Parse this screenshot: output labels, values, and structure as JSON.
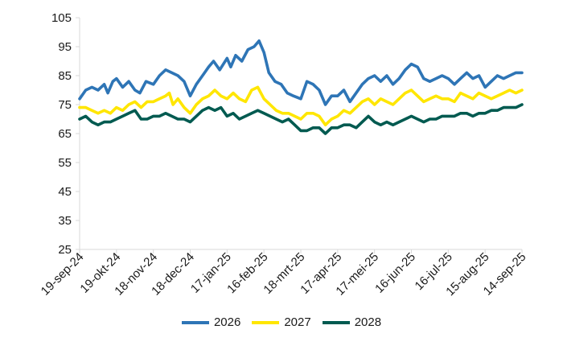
{
  "chart_data": {
    "type": "line",
    "title": "",
    "xlabel": "",
    "ylabel": "",
    "ylim": [
      25,
      105
    ],
    "yticks": [
      25,
      35,
      45,
      55,
      65,
      75,
      85,
      95,
      105
    ],
    "x_range": [
      "2024-09-19",
      "2025-09-14"
    ],
    "xticks": [
      {
        "date": "2024-09-19",
        "label": "19-sep-24"
      },
      {
        "date": "2024-10-19",
        "label": "19-okt-24"
      },
      {
        "date": "2024-11-18",
        "label": "18-nov-24"
      },
      {
        "date": "2024-12-18",
        "label": "18-dec-24"
      },
      {
        "date": "2025-01-17",
        "label": "17-jan-25"
      },
      {
        "date": "2025-02-16",
        "label": "16-feb-25"
      },
      {
        "date": "2025-03-18",
        "label": "18-mrt-25"
      },
      {
        "date": "2025-04-17",
        "label": "17-apr-25"
      },
      {
        "date": "2025-05-17",
        "label": "17-mei-25"
      },
      {
        "date": "2025-06-16",
        "label": "16-jun-25"
      },
      {
        "date": "2025-07-16",
        "label": "16-jul-25"
      },
      {
        "date": "2025-08-15",
        "label": "15-aug-25"
      },
      {
        "date": "2025-09-14",
        "label": "14-sep-25"
      }
    ],
    "grid": false,
    "legend_position": "bottom",
    "series": [
      {
        "name": "2026",
        "color": "#2e75b6",
        "points": [
          [
            "2024-09-19",
            77
          ],
          [
            "2024-09-24",
            80
          ],
          [
            "2024-09-29",
            81
          ],
          [
            "2024-10-04",
            80
          ],
          [
            "2024-10-09",
            82
          ],
          [
            "2024-10-12",
            79
          ],
          [
            "2024-10-16",
            83
          ],
          [
            "2024-10-19",
            84
          ],
          [
            "2024-10-24",
            81
          ],
          [
            "2024-10-29",
            83
          ],
          [
            "2024-11-03",
            80
          ],
          [
            "2024-11-07",
            79
          ],
          [
            "2024-11-12",
            83
          ],
          [
            "2024-11-18",
            82
          ],
          [
            "2024-11-23",
            85
          ],
          [
            "2024-11-28",
            87
          ],
          [
            "2024-12-03",
            86
          ],
          [
            "2024-12-08",
            85
          ],
          [
            "2024-12-13",
            83
          ],
          [
            "2024-12-18",
            78
          ],
          [
            "2024-12-23",
            82
          ],
          [
            "2024-12-28",
            85
          ],
          [
            "2025-01-02",
            88
          ],
          [
            "2025-01-06",
            90
          ],
          [
            "2025-01-11",
            87
          ],
          [
            "2025-01-17",
            91
          ],
          [
            "2025-01-20",
            88
          ],
          [
            "2025-01-24",
            92
          ],
          [
            "2025-01-29",
            90
          ],
          [
            "2025-02-03",
            94
          ],
          [
            "2025-02-08",
            95
          ],
          [
            "2025-02-12",
            97
          ],
          [
            "2025-02-16",
            93
          ],
          [
            "2025-02-20",
            86
          ],
          [
            "2025-02-25",
            83
          ],
          [
            "2025-03-02",
            82
          ],
          [
            "2025-03-07",
            79
          ],
          [
            "2025-03-12",
            78
          ],
          [
            "2025-03-18",
            77
          ],
          [
            "2025-03-23",
            83
          ],
          [
            "2025-03-28",
            82
          ],
          [
            "2025-04-02",
            80
          ],
          [
            "2025-04-07",
            75
          ],
          [
            "2025-04-12",
            78
          ],
          [
            "2025-04-17",
            78
          ],
          [
            "2025-04-22",
            80
          ],
          [
            "2025-04-27",
            76
          ],
          [
            "2025-05-02",
            79
          ],
          [
            "2025-05-07",
            82
          ],
          [
            "2025-05-12",
            84
          ],
          [
            "2025-05-17",
            85
          ],
          [
            "2025-05-22",
            83
          ],
          [
            "2025-05-27",
            85
          ],
          [
            "2025-06-01",
            82
          ],
          [
            "2025-06-06",
            84
          ],
          [
            "2025-06-11",
            87
          ],
          [
            "2025-06-16",
            89
          ],
          [
            "2025-06-21",
            88
          ],
          [
            "2025-06-26",
            84
          ],
          [
            "2025-07-01",
            83
          ],
          [
            "2025-07-06",
            84
          ],
          [
            "2025-07-11",
            85
          ],
          [
            "2025-07-16",
            84
          ],
          [
            "2025-07-21",
            82
          ],
          [
            "2025-07-26",
            84
          ],
          [
            "2025-07-31",
            86
          ],
          [
            "2025-08-05",
            84
          ],
          [
            "2025-08-10",
            85
          ],
          [
            "2025-08-15",
            81
          ],
          [
            "2025-08-20",
            83
          ],
          [
            "2025-08-25",
            85
          ],
          [
            "2025-08-30",
            84
          ],
          [
            "2025-09-04",
            85
          ],
          [
            "2025-09-09",
            86
          ],
          [
            "2025-09-14",
            86
          ]
        ]
      },
      {
        "name": "2027",
        "color": "#ffe600",
        "points": [
          [
            "2024-09-19",
            74
          ],
          [
            "2024-09-24",
            74
          ],
          [
            "2024-09-29",
            73
          ],
          [
            "2024-10-04",
            72
          ],
          [
            "2024-10-09",
            73
          ],
          [
            "2024-10-14",
            72
          ],
          [
            "2024-10-19",
            74
          ],
          [
            "2024-10-24",
            73
          ],
          [
            "2024-10-29",
            75
          ],
          [
            "2024-11-03",
            76
          ],
          [
            "2024-11-08",
            74
          ],
          [
            "2024-11-13",
            76
          ],
          [
            "2024-11-18",
            76
          ],
          [
            "2024-11-23",
            77
          ],
          [
            "2024-11-28",
            78
          ],
          [
            "2024-12-01",
            79
          ],
          [
            "2024-12-04",
            75
          ],
          [
            "2024-12-08",
            77
          ],
          [
            "2024-12-13",
            74
          ],
          [
            "2024-12-18",
            72
          ],
          [
            "2024-12-23",
            75
          ],
          [
            "2024-12-28",
            77
          ],
          [
            "2025-01-02",
            78
          ],
          [
            "2025-01-07",
            80
          ],
          [
            "2025-01-12",
            78
          ],
          [
            "2025-01-17",
            77
          ],
          [
            "2025-01-22",
            79
          ],
          [
            "2025-01-27",
            77
          ],
          [
            "2025-02-01",
            76
          ],
          [
            "2025-02-06",
            80
          ],
          [
            "2025-02-11",
            81
          ],
          [
            "2025-02-16",
            77
          ],
          [
            "2025-02-21",
            75
          ],
          [
            "2025-02-26",
            73
          ],
          [
            "2025-03-03",
            72
          ],
          [
            "2025-03-08",
            72
          ],
          [
            "2025-03-13",
            71
          ],
          [
            "2025-03-18",
            70
          ],
          [
            "2025-03-23",
            72
          ],
          [
            "2025-03-28",
            72
          ],
          [
            "2025-04-02",
            71
          ],
          [
            "2025-04-07",
            68
          ],
          [
            "2025-04-12",
            70
          ],
          [
            "2025-04-17",
            71
          ],
          [
            "2025-04-22",
            73
          ],
          [
            "2025-04-27",
            72
          ],
          [
            "2025-05-02",
            74
          ],
          [
            "2025-05-07",
            76
          ],
          [
            "2025-05-12",
            77
          ],
          [
            "2025-05-17",
            75
          ],
          [
            "2025-05-22",
            77
          ],
          [
            "2025-05-27",
            76
          ],
          [
            "2025-06-01",
            75
          ],
          [
            "2025-06-06",
            77
          ],
          [
            "2025-06-11",
            79
          ],
          [
            "2025-06-16",
            80
          ],
          [
            "2025-06-21",
            78
          ],
          [
            "2025-06-26",
            76
          ],
          [
            "2025-07-01",
            77
          ],
          [
            "2025-07-06",
            78
          ],
          [
            "2025-07-11",
            77
          ],
          [
            "2025-07-16",
            77
          ],
          [
            "2025-07-21",
            76
          ],
          [
            "2025-07-26",
            79
          ],
          [
            "2025-07-31",
            78
          ],
          [
            "2025-08-05",
            77
          ],
          [
            "2025-08-10",
            79
          ],
          [
            "2025-08-15",
            78
          ],
          [
            "2025-08-20",
            77
          ],
          [
            "2025-08-25",
            78
          ],
          [
            "2025-08-30",
            79
          ],
          [
            "2025-09-04",
            80
          ],
          [
            "2025-09-09",
            79
          ],
          [
            "2025-09-14",
            80
          ]
        ]
      },
      {
        "name": "2028",
        "color": "#005a50",
        "points": [
          [
            "2024-09-19",
            70
          ],
          [
            "2024-09-24",
            71
          ],
          [
            "2024-09-29",
            69
          ],
          [
            "2024-10-04",
            68
          ],
          [
            "2024-10-09",
            69
          ],
          [
            "2024-10-14",
            69
          ],
          [
            "2024-10-19",
            70
          ],
          [
            "2024-10-24",
            71
          ],
          [
            "2024-10-29",
            72
          ],
          [
            "2024-11-03",
            73
          ],
          [
            "2024-11-08",
            70
          ],
          [
            "2024-11-13",
            70
          ],
          [
            "2024-11-18",
            71
          ],
          [
            "2024-11-23",
            71
          ],
          [
            "2024-11-28",
            72
          ],
          [
            "2024-12-03",
            71
          ],
          [
            "2024-12-08",
            70
          ],
          [
            "2024-12-13",
            70
          ],
          [
            "2024-12-18",
            69
          ],
          [
            "2024-12-23",
            71
          ],
          [
            "2024-12-28",
            73
          ],
          [
            "2025-01-02",
            74
          ],
          [
            "2025-01-07",
            73
          ],
          [
            "2025-01-12",
            74
          ],
          [
            "2025-01-17",
            71
          ],
          [
            "2025-01-22",
            72
          ],
          [
            "2025-01-27",
            70
          ],
          [
            "2025-02-01",
            71
          ],
          [
            "2025-02-06",
            72
          ],
          [
            "2025-02-11",
            73
          ],
          [
            "2025-02-16",
            72
          ],
          [
            "2025-02-21",
            71
          ],
          [
            "2025-02-26",
            70
          ],
          [
            "2025-03-03",
            69
          ],
          [
            "2025-03-08",
            70
          ],
          [
            "2025-03-13",
            68
          ],
          [
            "2025-03-18",
            66
          ],
          [
            "2025-03-23",
            66
          ],
          [
            "2025-03-28",
            67
          ],
          [
            "2025-04-02",
            67
          ],
          [
            "2025-04-07",
            65
          ],
          [
            "2025-04-12",
            67
          ],
          [
            "2025-04-17",
            67
          ],
          [
            "2025-04-22",
            68
          ],
          [
            "2025-04-27",
            68
          ],
          [
            "2025-05-02",
            67
          ],
          [
            "2025-05-07",
            69
          ],
          [
            "2025-05-12",
            71
          ],
          [
            "2025-05-17",
            69
          ],
          [
            "2025-05-22",
            68
          ],
          [
            "2025-05-27",
            69
          ],
          [
            "2025-06-01",
            68
          ],
          [
            "2025-06-06",
            69
          ],
          [
            "2025-06-11",
            70
          ],
          [
            "2025-06-16",
            71
          ],
          [
            "2025-06-21",
            70
          ],
          [
            "2025-06-26",
            69
          ],
          [
            "2025-07-01",
            70
          ],
          [
            "2025-07-06",
            70
          ],
          [
            "2025-07-11",
            71
          ],
          [
            "2025-07-16",
            71
          ],
          [
            "2025-07-21",
            71
          ],
          [
            "2025-07-26",
            72
          ],
          [
            "2025-07-31",
            72
          ],
          [
            "2025-08-05",
            71
          ],
          [
            "2025-08-10",
            72
          ],
          [
            "2025-08-15",
            72
          ],
          [
            "2025-08-20",
            73
          ],
          [
            "2025-08-25",
            73
          ],
          [
            "2025-08-30",
            74
          ],
          [
            "2025-09-04",
            74
          ],
          [
            "2025-09-09",
            74
          ],
          [
            "2025-09-14",
            75
          ]
        ]
      }
    ]
  }
}
